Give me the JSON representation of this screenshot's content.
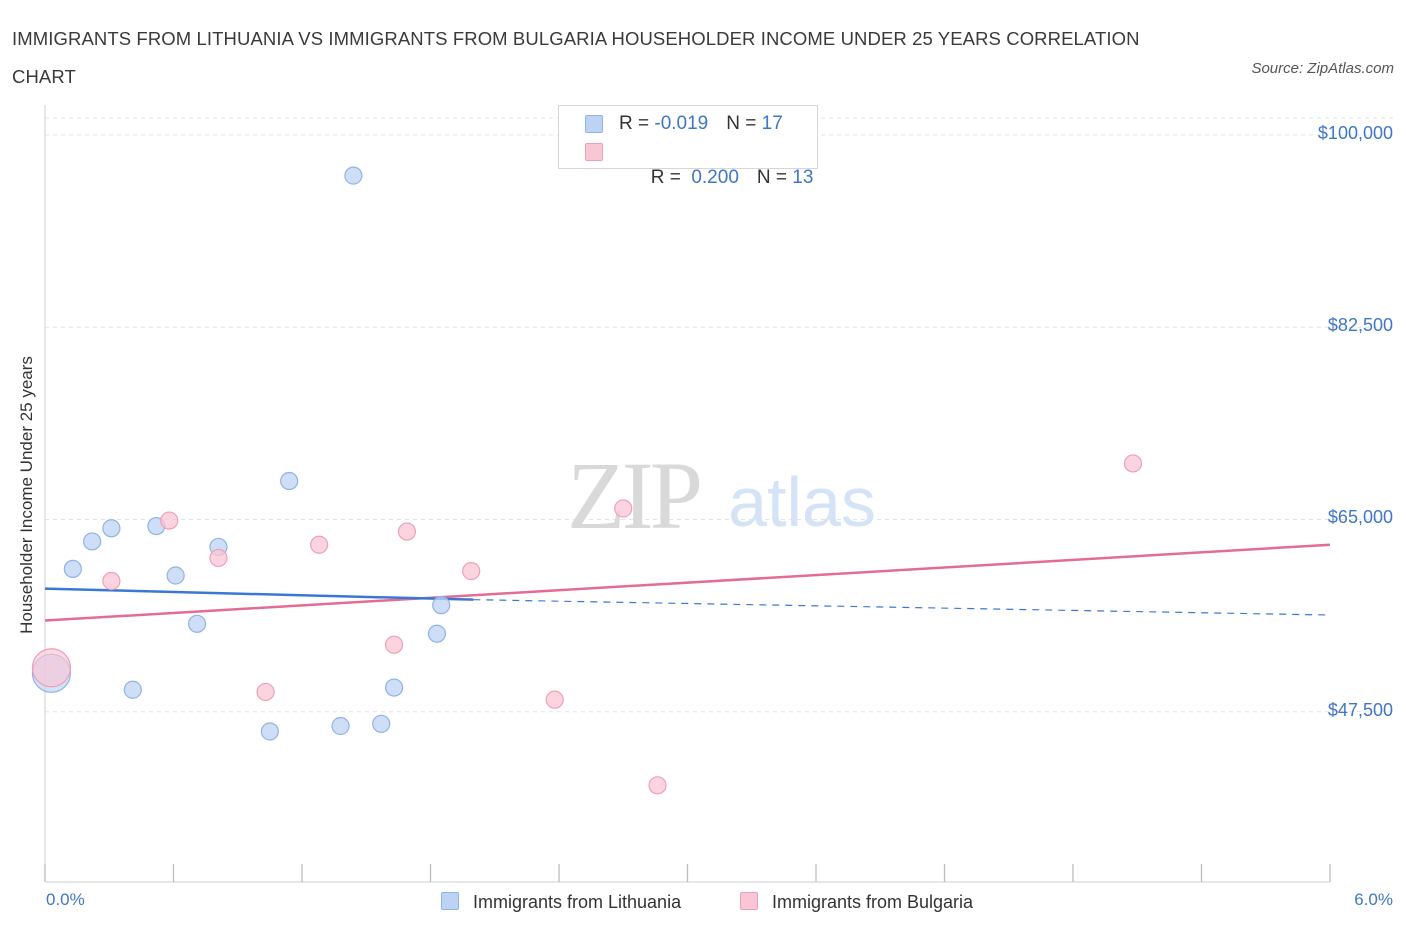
{
  "title": "IMMIGRANTS FROM LITHUANIA VS IMMIGRANTS FROM BULGARIA HOUSEHOLDER INCOME UNDER 25 YEARS CORRELATION CHART",
  "source": "Source: ZipAtlas.com",
  "watermark": {
    "zip": "ZIP",
    "atlas": "atlas"
  },
  "colors": {
    "lithuania_fill": "#bcd3f3",
    "lithuania_stroke": "#8fb3e6",
    "lithuania_line": "#3a78d4",
    "bulgaria_fill": "#f9c6d5",
    "bulgaria_stroke": "#eda0b8",
    "bulgaria_line": "#e46b95",
    "axis_text": "#3f76c8"
  },
  "legend": {
    "rows": [
      {
        "r_label": "R = ",
        "r_value": "-0.019",
        "n_label": "N = ",
        "n_value": "17"
      },
      {
        "r_label": "R = ",
        "r_value": " 0.200",
        "n_label": "N = ",
        "n_value": "13"
      }
    ]
  },
  "bottom_legend": {
    "lithuania": "Immigrants from Lithuania",
    "bulgaria": "Immigrants from Bulgaria"
  },
  "chart_data": {
    "type": "scatter",
    "title": "IMMIGRANTS FROM LITHUANIA VS IMMIGRANTS FROM BULGARIA HOUSEHOLDER INCOME UNDER 25 YEARS CORRELATION CHART",
    "xlabel": "",
    "ylabel": "Householder Income Under 25 years",
    "xlim": [
      0,
      6
    ],
    "ylim": [
      32000,
      102000
    ],
    "x_tick_labels": [
      "0.0%",
      "6.0%"
    ],
    "y_ticks": [
      47500,
      65000,
      82500,
      100000
    ],
    "y_tick_labels": [
      "$47,500",
      "$65,000",
      "$82,500",
      "$100,000"
    ],
    "grid": true,
    "series": [
      {
        "name": "Immigrants from Lithuania",
        "r": -0.019,
        "n": 17,
        "points": [
          {
            "x": 0.03,
            "y": 51000,
            "large": true
          },
          {
            "x": 0.13,
            "y": 60500
          },
          {
            "x": 0.22,
            "y": 63000
          },
          {
            "x": 0.31,
            "y": 64200
          },
          {
            "x": 0.41,
            "y": 49500
          },
          {
            "x": 0.52,
            "y": 64400
          },
          {
            "x": 0.61,
            "y": 59900
          },
          {
            "x": 0.71,
            "y": 55500
          },
          {
            "x": 0.81,
            "y": 62500
          },
          {
            "x": 1.05,
            "y": 45700
          },
          {
            "x": 1.14,
            "y": 68500
          },
          {
            "x": 1.38,
            "y": 46200
          },
          {
            "x": 1.44,
            "y": 96300
          },
          {
            "x": 1.57,
            "y": 46400
          },
          {
            "x": 1.63,
            "y": 49700
          },
          {
            "x": 1.83,
            "y": 54600
          },
          {
            "x": 1.85,
            "y": 57200
          }
        ],
        "trend": {
          "x": [
            0.0,
            2.0
          ],
          "y": [
            58700,
            57700
          ],
          "dashed_extension": {
            "x": [
              2.0,
              6.0
            ],
            "y": [
              57700,
              56300
            ]
          }
        }
      },
      {
        "name": "Immigrants from Bulgaria",
        "r": 0.2,
        "n": 13,
        "points": [
          {
            "x": 0.03,
            "y": 51500,
            "large": true
          },
          {
            "x": 0.31,
            "y": 59400
          },
          {
            "x": 0.58,
            "y": 64900
          },
          {
            "x": 0.81,
            "y": 61500
          },
          {
            "x": 1.03,
            "y": 49300
          },
          {
            "x": 1.28,
            "y": 62700
          },
          {
            "x": 1.63,
            "y": 53600
          },
          {
            "x": 1.69,
            "y": 63900
          },
          {
            "x": 1.99,
            "y": 60300
          },
          {
            "x": 2.38,
            "y": 48600
          },
          {
            "x": 2.7,
            "y": 66000
          },
          {
            "x": 2.86,
            "y": 40800
          },
          {
            "x": 5.08,
            "y": 70100
          }
        ],
        "trend": {
          "x": [
            0.0,
            6.0
          ],
          "y": [
            55800,
            62700
          ]
        }
      }
    ]
  }
}
